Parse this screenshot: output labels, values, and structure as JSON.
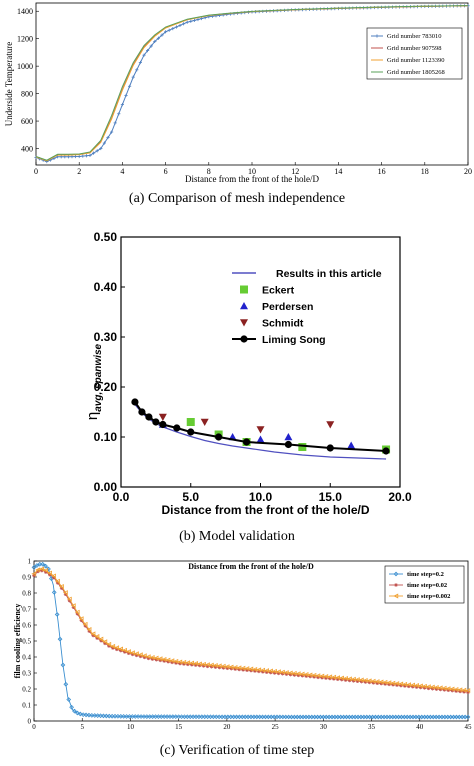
{
  "chart_data": [
    {
      "type": "line",
      "caption": "(a) Comparison of mesh independence",
      "xlabel": "Distance from the front of the hole/D",
      "ylabel": "Underside Temperature",
      "xlim": [
        0,
        20
      ],
      "ylim": [
        280,
        1460
      ],
      "x_ticks": [
        0,
        2,
        4,
        6,
        8,
        10,
        12,
        14,
        16,
        18,
        20
      ],
      "y_ticks": [
        400,
        600,
        800,
        1000,
        1200,
        1400
      ],
      "legend_position": "right",
      "grid": false,
      "series": [
        {
          "name": "Grid number   783010",
          "color": "#4f7fbf",
          "marker": "plus",
          "x": [
            0,
            0.5,
            1,
            1.5,
            2,
            2.5,
            3,
            3.5,
            4,
            4.5,
            5,
            5.5,
            6,
            7,
            8,
            9,
            10,
            12,
            14,
            16,
            18,
            20
          ],
          "y": [
            335,
            305,
            340,
            340,
            342,
            350,
            400,
            520,
            720,
            920,
            1080,
            1180,
            1250,
            1320,
            1360,
            1380,
            1395,
            1410,
            1420,
            1428,
            1435,
            1440
          ]
        },
        {
          "name": "Grid number   907598",
          "color": "#c0504d",
          "marker": "none",
          "x": [
            0,
            0.5,
            1,
            1.5,
            2,
            2.5,
            3,
            3.5,
            4,
            4.5,
            5,
            5.5,
            6,
            7,
            8,
            9,
            10,
            12,
            14,
            16,
            18,
            20
          ],
          "y": [
            340,
            312,
            355,
            355,
            358,
            370,
            450,
            620,
            830,
            1010,
            1140,
            1220,
            1280,
            1340,
            1370,
            1385,
            1398,
            1412,
            1422,
            1430,
            1436,
            1440
          ]
        },
        {
          "name": "Grid number   1123390",
          "color": "#f0a030",
          "marker": "none",
          "x": [
            0,
            0.5,
            1,
            1.5,
            2,
            2.5,
            3,
            3.5,
            4,
            4.5,
            5,
            5.5,
            6,
            7,
            8,
            9,
            10,
            12,
            14,
            16,
            18,
            20
          ],
          "y": [
            338,
            310,
            352,
            352,
            356,
            368,
            445,
            615,
            825,
            1005,
            1135,
            1218,
            1278,
            1338,
            1369,
            1384,
            1397,
            1411,
            1421,
            1429,
            1435,
            1440
          ]
        },
        {
          "name": "Grid number   1805268",
          "color": "#5aa05a",
          "marker": "none",
          "x": [
            0,
            0.5,
            1,
            1.5,
            2,
            2.5,
            3,
            3.5,
            4,
            4.5,
            5,
            5.5,
            6,
            7,
            8,
            9,
            10,
            12,
            14,
            16,
            18,
            20
          ],
          "y": [
            342,
            315,
            358,
            358,
            360,
            375,
            460,
            640,
            850,
            1025,
            1150,
            1228,
            1285,
            1342,
            1372,
            1386,
            1399,
            1413,
            1423,
            1431,
            1437,
            1441
          ]
        }
      ]
    },
    {
      "type": "line",
      "caption": "(b) Model validation",
      "xlabel": "Distance from the front of the hole/D",
      "ylabel": "η",
      "ylabel_sub": "avg, spanwise",
      "xlim": [
        0,
        20
      ],
      "ylim": [
        0,
        0.5
      ],
      "x_ticks": [
        "0.0",
        "5.0",
        "10.0",
        "15.0",
        "20.0"
      ],
      "y_ticks": [
        "0.00",
        "0.10",
        "0.20",
        "0.30",
        "0.40",
        "0.50"
      ],
      "legend_position": "top-right",
      "grid": false,
      "series": [
        {
          "name": "Results in this article",
          "color": "#5050c0",
          "marker": "none",
          "x": [
            1,
            1.5,
            2,
            2.5,
            3,
            4,
            5,
            6,
            7,
            8,
            9,
            10,
            11,
            12,
            13,
            14,
            15,
            16,
            17,
            18,
            19
          ],
          "y": [
            0.165,
            0.148,
            0.136,
            0.127,
            0.12,
            0.11,
            0.101,
            0.093,
            0.087,
            0.082,
            0.078,
            0.074,
            0.07,
            0.067,
            0.064,
            0.062,
            0.06,
            0.059,
            0.058,
            0.057,
            0.056
          ]
        },
        {
          "name": "Eckert",
          "color": "#66cc33",
          "marker": "square",
          "x": [
            5,
            7,
            9,
            13,
            19
          ],
          "y": [
            0.13,
            0.105,
            0.09,
            0.08,
            0.075
          ]
        },
        {
          "name": "Perdersen",
          "color": "#2222cc",
          "marker": "triangle-up",
          "x": [
            3,
            8,
            10,
            12,
            16.5
          ],
          "y": [
            0.125,
            0.1,
            0.095,
            0.1,
            0.083
          ]
        },
        {
          "name": "Schmidt",
          "color": "#8b2222",
          "marker": "triangle-down",
          "x": [
            3,
            6,
            10,
            15
          ],
          "y": [
            0.14,
            0.13,
            0.115,
            0.125
          ]
        },
        {
          "name": "Liming Song",
          "color": "#000000",
          "marker": "circle",
          "x": [
            1,
            1.5,
            2,
            2.5,
            3,
            4,
            5,
            7,
            9,
            12,
            15,
            19
          ],
          "y": [
            0.17,
            0.15,
            0.14,
            0.13,
            0.125,
            0.118,
            0.11,
            0.1,
            0.09,
            0.085,
            0.078,
            0.072
          ]
        }
      ]
    },
    {
      "type": "line",
      "caption": "(c) Verification of time step",
      "xlabel": "Distance from the front of the hole/D",
      "ylabel": "film cooling efficiency",
      "xlim": [
        0,
        45
      ],
      "ylim": [
        0,
        1
      ],
      "x_ticks": [
        0,
        5,
        10,
        15,
        20,
        25,
        30,
        35,
        40,
        45
      ],
      "y_ticks": [
        0,
        0.1,
        0.2,
        0.3,
        0.4,
        0.5,
        0.6,
        0.7,
        0.8,
        0.9,
        1
      ],
      "legend_position": "top-right",
      "grid": false,
      "series": [
        {
          "name": "time step=0.2",
          "color": "#3b8fd0",
          "marker": "diamond",
          "x": [
            0,
            0.5,
            1,
            1.5,
            2,
            2.5,
            3,
            3.5,
            4,
            4.5,
            5,
            6,
            8,
            10,
            15,
            20,
            30,
            45
          ],
          "y": [
            0.96,
            0.98,
            0.98,
            0.95,
            0.85,
            0.62,
            0.35,
            0.15,
            0.07,
            0.05,
            0.04,
            0.035,
            0.03,
            0.028,
            0.027,
            0.026,
            0.025,
            0.025
          ]
        },
        {
          "name": "time step=0.02",
          "color": "#c0504d",
          "marker": "star",
          "x": [
            0,
            0.5,
            1,
            1.5,
            2,
            3,
            4,
            5,
            6,
            8,
            10,
            12,
            15,
            20,
            25,
            30,
            35,
            40,
            45
          ],
          "y": [
            0.91,
            0.94,
            0.94,
            0.92,
            0.9,
            0.82,
            0.72,
            0.62,
            0.54,
            0.46,
            0.42,
            0.39,
            0.36,
            0.33,
            0.3,
            0.27,
            0.24,
            0.21,
            0.18
          ]
        },
        {
          "name": "time step=0.002",
          "color": "#f0a030",
          "marker": "triangle-left",
          "x": [
            0,
            0.5,
            1,
            1.5,
            2,
            3,
            4,
            5,
            6,
            8,
            10,
            12,
            15,
            20,
            25,
            30,
            35,
            40,
            45
          ],
          "y": [
            0.92,
            0.95,
            0.95,
            0.93,
            0.91,
            0.83,
            0.73,
            0.63,
            0.55,
            0.47,
            0.43,
            0.4,
            0.37,
            0.34,
            0.31,
            0.28,
            0.25,
            0.22,
            0.19
          ]
        }
      ]
    }
  ]
}
